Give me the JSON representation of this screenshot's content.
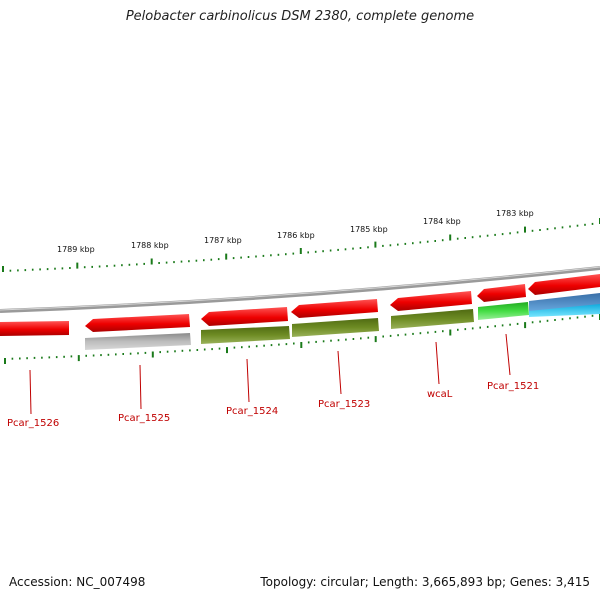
{
  "title": "Pelobacter carbinolicus DSM 2380, complete genome",
  "footer": {
    "accession": "Accession: NC_007498",
    "summary": "Topology: circular; Length: 3,665,893 bp; Genes: 3,415"
  },
  "colors": {
    "tick": "#1a7a1a",
    "backbone": "#888888",
    "label": "#c00000",
    "red": "#ee0000",
    "gray": "#b0b0b0",
    "olive": "#6b8a22",
    "green": "#33cc33",
    "blue": "#4a90c8",
    "cyan": "#22ccee"
  },
  "kbp_labels": [
    "1789 kbp",
    "1788 kbp",
    "1787 kbp",
    "1786 kbp",
    "1785 kbp",
    "1784 kbp",
    "1783 kbp"
  ],
  "gene_labels": [
    "Pcar_1526",
    "Pcar_1525",
    "Pcar_1524",
    "Pcar_1523",
    "wcaL",
    "Pcar_1521"
  ]
}
